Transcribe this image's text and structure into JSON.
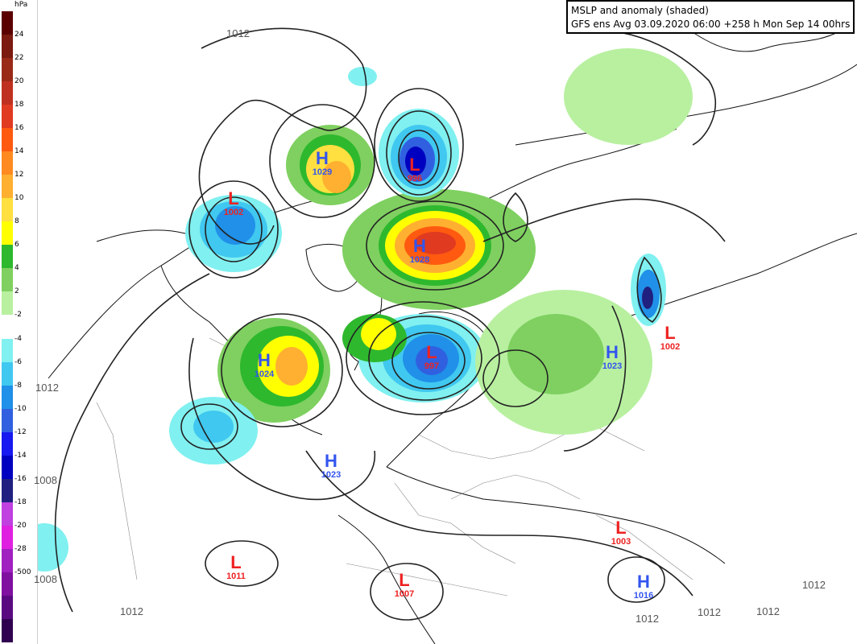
{
  "title": {
    "line1": "MSLP and anomaly (shaded)",
    "line2": "GFS ens Avg 03.09.2020 06:00 +258 h Mon Sep 14 00hrs"
  },
  "legend": {
    "unit": "hPa",
    "ticks": [
      "24",
      "22",
      "20",
      "18",
      "16",
      "14",
      "12",
      "10",
      "8",
      "6",
      "4",
      "2",
      "-2",
      "-4",
      "-6",
      "-8",
      "-10",
      "-12",
      "-14",
      "-16",
      "-18",
      "-20",
      "-28",
      "-500"
    ],
    "colors": [
      "#5a0000",
      "#7a1a10",
      "#9a2a18",
      "#c03020",
      "#e03a20",
      "#ff5a10",
      "#ff8a20",
      "#ffb030",
      "#ffe040",
      "#ffff00",
      "#2eb82e",
      "#7fd060",
      "#b8f0a0",
      "#ffffff",
      "#80f0f0",
      "#40c8f0",
      "#2090e8",
      "#3060e0",
      "#1818f0",
      "#0000c0",
      "#202080",
      "#c040e0",
      "#e020e0",
      "#a020c0",
      "#8010a0",
      "#5a0a80",
      "#300050"
    ]
  },
  "pressure_centers": [
    {
      "type": "H",
      "value": "1029"
    },
    {
      "type": "L",
      "value": "996"
    },
    {
      "type": "L",
      "value": "1002"
    },
    {
      "type": "H",
      "value": "1028"
    },
    {
      "type": "L",
      "value": "997"
    },
    {
      "type": "H",
      "value": "1024"
    },
    {
      "type": "H",
      "value": "1023"
    },
    {
      "type": "H",
      "value": "1023"
    },
    {
      "type": "L",
      "value": "1002"
    },
    {
      "type": "L",
      "value": "1003"
    },
    {
      "type": "L",
      "value": "1011"
    },
    {
      "type": "L",
      "value": "1007"
    },
    {
      "type": "H",
      "value": "1016"
    }
  ],
  "isobar_labels": [
    "1012",
    "1012",
    "1008",
    "1008",
    "1012",
    "1012",
    "1012",
    "1012",
    "1012"
  ]
}
